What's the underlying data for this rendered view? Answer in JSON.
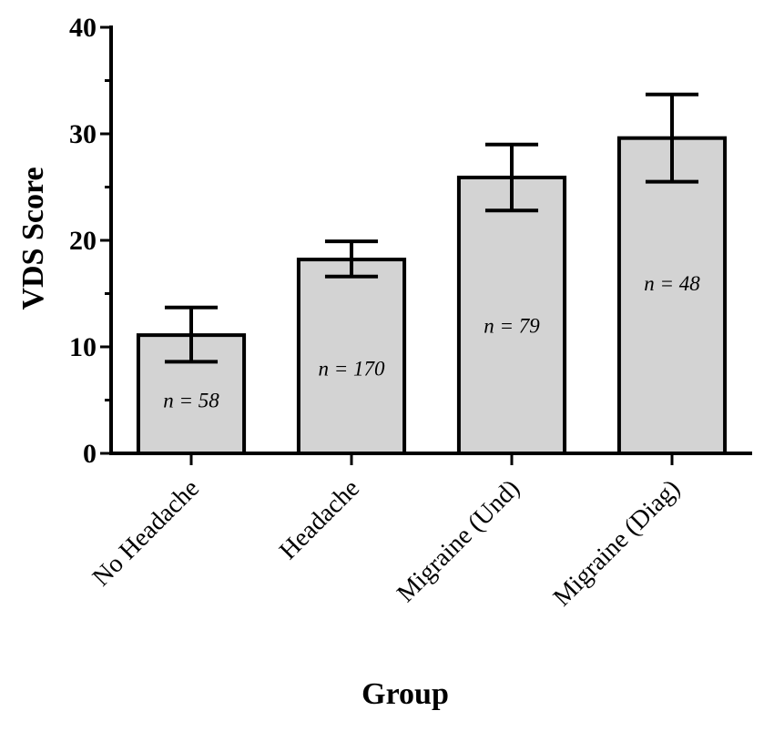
{
  "chart_data": {
    "type": "bar",
    "title": "",
    "xlabel": "Group",
    "ylabel": "VDS Score",
    "ylim": [
      0,
      40
    ],
    "yticks": [
      0,
      10,
      20,
      30,
      40
    ],
    "grid": false,
    "categories": [
      "No Headache",
      "Headache",
      "Migraine (Und)",
      "Migraine (Diag)"
    ],
    "values": [
      11.1,
      18.2,
      25.9,
      29.6
    ],
    "error_low": [
      8.6,
      16.6,
      22.8,
      25.5
    ],
    "error_high": [
      13.7,
      19.9,
      29.0,
      33.7
    ],
    "annotations": [
      "n = 58",
      "n = 170",
      "n = 79",
      "n = 48"
    ],
    "annotation_y": [
      5.0,
      8.0,
      12.0,
      16.0
    ],
    "colors": {
      "bar_fill": "#d3d3d3",
      "stroke": "#000000"
    }
  }
}
